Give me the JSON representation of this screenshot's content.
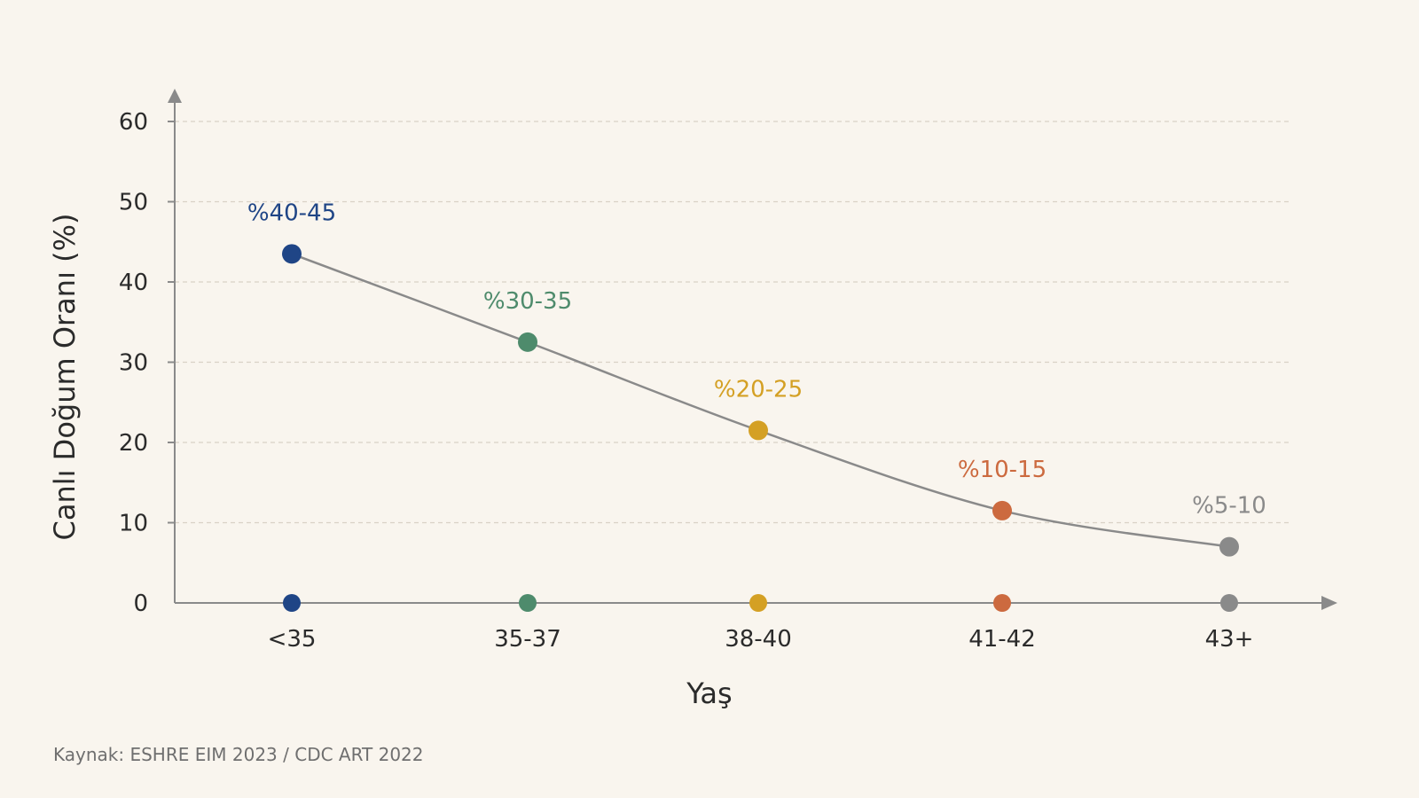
{
  "chart_data": {
    "type": "line",
    "categories": [
      "<35",
      "35-37",
      "38-40",
      "41-42",
      "43+"
    ],
    "values": [
      43.5,
      32.5,
      21.5,
      11.5,
      7
    ],
    "data_labels": [
      "%40-45",
      "%30-35",
      "%20-25",
      "%10-15",
      "%5-10"
    ],
    "point_colors": [
      "#1f4586",
      "#4e8b6c",
      "#d4a024",
      "#cc6a3f",
      "#8a8a8a"
    ],
    "line_color": "#8a8a8a",
    "xlabel": "Yaş",
    "ylabel": "Canlı Doğum Oranı (%)",
    "ylim": [
      0,
      60
    ],
    "yticks": [
      0,
      10,
      20,
      30,
      40,
      50,
      60
    ],
    "grid": true
  },
  "source": "Kaynak: ESHRE EIM 2023 / CDC ART 2022"
}
